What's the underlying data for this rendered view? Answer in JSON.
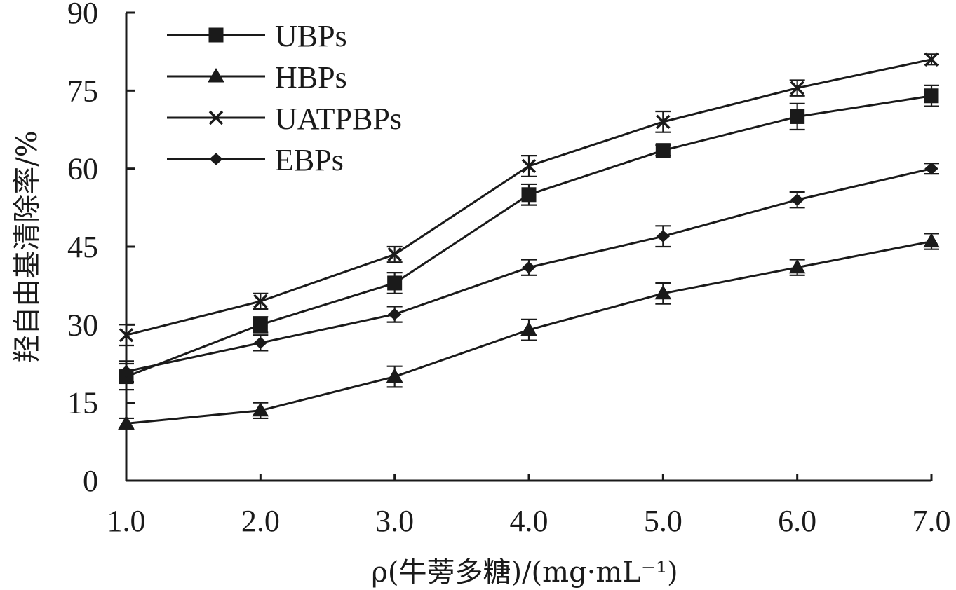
{
  "chart_data": {
    "type": "line",
    "xlabel": "ρ(牛蒡多糖)/(mg·mL⁻¹)",
    "ylabel": "羟自由基清除率/%",
    "x": [
      1.0,
      2.0,
      3.0,
      4.0,
      5.0,
      6.0,
      7.0
    ],
    "x_tick_labels": [
      "1.0",
      "2.0",
      "3.0",
      "4.0",
      "5.0",
      "6.0",
      "7.0"
    ],
    "xlim": [
      1.0,
      7.0
    ],
    "ylim": [
      0,
      90
    ],
    "y_ticks": [
      0,
      15,
      30,
      45,
      60,
      75,
      90
    ],
    "y_tick_labels": [
      "0",
      "15",
      "30",
      "45",
      "60",
      "75",
      "90"
    ],
    "legend_position": "top-left",
    "grid": false,
    "series": [
      {
        "name": "UBPs",
        "marker": "square",
        "values": [
          20.0,
          30.0,
          38.0,
          55.0,
          63.5,
          70.0,
          74.0
        ],
        "errors": [
          2.5,
          1.5,
          2.0,
          2.0,
          1.0,
          2.5,
          2.0
        ]
      },
      {
        "name": "HBPs",
        "marker": "triangle",
        "values": [
          11.0,
          13.5,
          20.0,
          29.0,
          36.0,
          41.0,
          46.0
        ],
        "errors": [
          1.0,
          1.5,
          2.0,
          2.0,
          2.0,
          1.5,
          1.5
        ]
      },
      {
        "name": "UATPBPs",
        "marker": "cross",
        "values": [
          28.0,
          34.5,
          43.5,
          60.5,
          69.0,
          75.5,
          81.0
        ],
        "errors": [
          2.0,
          1.5,
          1.5,
          2.0,
          2.0,
          1.5,
          1.0
        ]
      },
      {
        "name": "EBPs",
        "marker": "diamond",
        "values": [
          21.0,
          26.5,
          32.0,
          41.0,
          47.0,
          54.0,
          60.0
        ],
        "errors": [
          2.0,
          1.5,
          1.5,
          1.5,
          2.0,
          1.5,
          1.0
        ]
      }
    ]
  },
  "colors": {
    "ink": "#1a1a1a",
    "background": "#ffffff"
  }
}
